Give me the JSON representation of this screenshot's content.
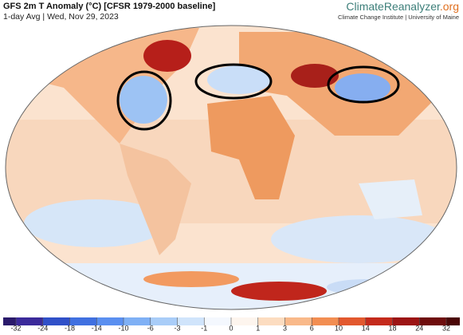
{
  "header": {
    "title": "GFS 2m T Anomaly (°C) [CFSR 1979-2000 baseline]",
    "subtitle": "1-day Avg | Wed, Nov 29, 2023"
  },
  "logo": {
    "name": "ClimateReanalyzer",
    "tld": ".org",
    "tagline": "Climate Change Institute | University of Maine"
  },
  "colorbar": {
    "ticks": [
      -32,
      -24,
      -18,
      -14,
      -10,
      -6,
      -3,
      -1,
      0,
      1,
      3,
      6,
      10,
      14,
      18,
      24,
      32
    ],
    "colors": [
      "#2a1a6b",
      "#3b2a9a",
      "#3050c8",
      "#4070e0",
      "#5a8ff0",
      "#7fb0f5",
      "#a9cdf8",
      "#d0e4fb",
      "#f4f8fe",
      "#fdf5ee",
      "#fcdcc0",
      "#f9b98a",
      "#f28e52",
      "#e2582e",
      "#c42a1c",
      "#9c1414",
      "#6e0d0d",
      "#4a0606"
    ]
  }
}
